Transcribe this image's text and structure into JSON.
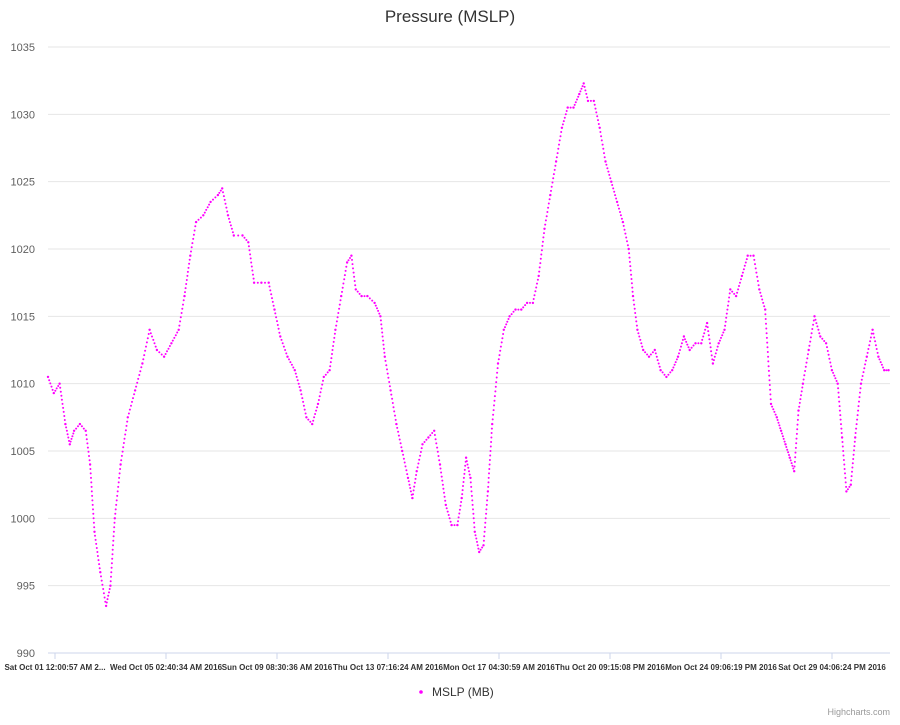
{
  "chart_data": {
    "type": "scatter",
    "title": "Pressure (MSLP)",
    "xlabel": "",
    "ylabel": "",
    "ylim": [
      990,
      1035
    ],
    "y_ticks": [
      "990",
      "995",
      "1000",
      "1005",
      "1010",
      "1015",
      "1020",
      "1025",
      "1030",
      "1035"
    ],
    "x_tick_labels": [
      "Sat Oct 01 12:00:57 AM 2...",
      "Wed Oct 05 02:40:34 AM 2016",
      "Sun Oct 09 08:30:36 AM 2016",
      "Thu Oct 13 07:16:24 AM 2016",
      "Mon Oct 17 04:30:59 AM 2016",
      "Thu Oct 20 09:15:08 PM 2016",
      "Mon Oct 24 09:06:19 PM 2016",
      "Sat Oct 29 04:06:24 PM 2016"
    ],
    "grid": true,
    "legend_position": "bottom-center",
    "series": [
      {
        "name": "MSLP (MB)",
        "color": "#ff00ff",
        "marker": "dot",
        "points": [
          [
            0,
            1010.5
          ],
          [
            4,
            1009.3
          ],
          [
            8,
            1010.0
          ],
          [
            12,
            1007.0
          ],
          [
            15,
            1005.5
          ],
          [
            18,
            1006.5
          ],
          [
            22,
            1007.0
          ],
          [
            26,
            1006.5
          ],
          [
            29,
            1004.0
          ],
          [
            32,
            999.0
          ],
          [
            36,
            996.0
          ],
          [
            40,
            993.5
          ],
          [
            43,
            995.0
          ],
          [
            46,
            1000.0
          ],
          [
            50,
            1004.0
          ],
          [
            55,
            1007.5
          ],
          [
            60,
            1009.5
          ],
          [
            65,
            1011.5
          ],
          [
            70,
            1014.0
          ],
          [
            75,
            1012.5
          ],
          [
            80,
            1012.0
          ],
          [
            85,
            1013.0
          ],
          [
            90,
            1014.0
          ],
          [
            94,
            1016.5
          ],
          [
            98,
            1019.5
          ],
          [
            102,
            1022.0
          ],
          [
            107,
            1022.5
          ],
          [
            112,
            1023.5
          ],
          [
            117,
            1024.0
          ],
          [
            120,
            1024.5
          ],
          [
            124,
            1022.5
          ],
          [
            128,
            1021.0
          ],
          [
            134,
            1021.0
          ],
          [
            138,
            1020.5
          ],
          [
            142,
            1017.5
          ],
          [
            147,
            1017.5
          ],
          [
            152,
            1017.5
          ],
          [
            156,
            1015.5
          ],
          [
            160,
            1013.5
          ],
          [
            165,
            1012.0
          ],
          [
            170,
            1011.0
          ],
          [
            174,
            1009.5
          ],
          [
            178,
            1007.5
          ],
          [
            182,
            1007.0
          ],
          [
            186,
            1008.5
          ],
          [
            190,
            1010.5
          ],
          [
            194,
            1011.0
          ],
          [
            198,
            1014.0
          ],
          [
            202,
            1016.5
          ],
          [
            206,
            1019.0
          ],
          [
            209,
            1019.5
          ],
          [
            212,
            1017.0
          ],
          [
            216,
            1016.5
          ],
          [
            220,
            1016.5
          ],
          [
            225,
            1016.0
          ],
          [
            229,
            1015.0
          ],
          [
            232,
            1012.0
          ],
          [
            236,
            1009.5
          ],
          [
            240,
            1007.0
          ],
          [
            244,
            1005.0
          ],
          [
            248,
            1003.0
          ],
          [
            251,
            1001.5
          ],
          [
            254,
            1003.5
          ],
          [
            258,
            1005.5
          ],
          [
            262,
            1006.0
          ],
          [
            266,
            1006.5
          ],
          [
            270,
            1004.0
          ],
          [
            274,
            1001.0
          ],
          [
            278,
            999.5
          ],
          [
            282,
            999.5
          ],
          [
            285,
            1001.5
          ],
          [
            288,
            1004.5
          ],
          [
            291,
            1003.0
          ],
          [
            294,
            999.0
          ],
          [
            297,
            997.5
          ],
          [
            300,
            998.0
          ],
          [
            303,
            1002.0
          ],
          [
            306,
            1007.0
          ],
          [
            310,
            1011.5
          ],
          [
            314,
            1014.0
          ],
          [
            318,
            1015.0
          ],
          [
            322,
            1015.5
          ],
          [
            326,
            1015.5
          ],
          [
            330,
            1016.0
          ],
          [
            334,
            1016.0
          ],
          [
            338,
            1018.0
          ],
          [
            342,
            1021.5
          ],
          [
            346,
            1024.0
          ],
          [
            350,
            1026.5
          ],
          [
            354,
            1029.0
          ],
          [
            358,
            1030.5
          ],
          [
            362,
            1030.5
          ],
          [
            366,
            1031.5
          ],
          [
            369,
            1032.3
          ],
          [
            372,
            1031.0
          ],
          [
            376,
            1031.0
          ],
          [
            380,
            1029.0
          ],
          [
            384,
            1026.5
          ],
          [
            388,
            1025.0
          ],
          [
            392,
            1023.5
          ],
          [
            396,
            1022.0
          ],
          [
            400,
            1020.0
          ],
          [
            403,
            1016.5
          ],
          [
            406,
            1014.0
          ],
          [
            410,
            1012.5
          ],
          [
            414,
            1012.0
          ],
          [
            418,
            1012.5
          ],
          [
            422,
            1011.0
          ],
          [
            426,
            1010.5
          ],
          [
            430,
            1011.0
          ],
          [
            434,
            1012.0
          ],
          [
            438,
            1013.5
          ],
          [
            442,
            1012.5
          ],
          [
            446,
            1013.0
          ],
          [
            450,
            1013.0
          ],
          [
            454,
            1014.5
          ],
          [
            458,
            1011.5
          ],
          [
            462,
            1013.0
          ],
          [
            466,
            1014.0
          ],
          [
            470,
            1017.0
          ],
          [
            474,
            1016.5
          ],
          [
            478,
            1018.0
          ],
          [
            482,
            1019.5
          ],
          [
            486,
            1019.5
          ],
          [
            490,
            1017.0
          ],
          [
            494,
            1015.5
          ],
          [
            498,
            1008.5
          ],
          [
            502,
            1007.5
          ],
          [
            505,
            1006.5
          ],
          [
            508,
            1005.5
          ],
          [
            511,
            1004.5
          ],
          [
            514,
            1003.5
          ],
          [
            517,
            1008.0
          ],
          [
            520,
            1010.0
          ],
          [
            524,
            1012.5
          ],
          [
            528,
            1015.0
          ],
          [
            532,
            1013.5
          ],
          [
            536,
            1013.0
          ],
          [
            540,
            1011.0
          ],
          [
            544,
            1010.0
          ],
          [
            547,
            1006.0
          ],
          [
            550,
            1002.0
          ],
          [
            553,
            1002.5
          ],
          [
            556,
            1006.0
          ],
          [
            560,
            1010.0
          ],
          [
            564,
            1012.0
          ],
          [
            568,
            1014.0
          ],
          [
            572,
            1012.0
          ],
          [
            576,
            1011.0
          ],
          [
            579,
            1011.0
          ]
        ]
      }
    ]
  },
  "credits": "Highcharts.com"
}
